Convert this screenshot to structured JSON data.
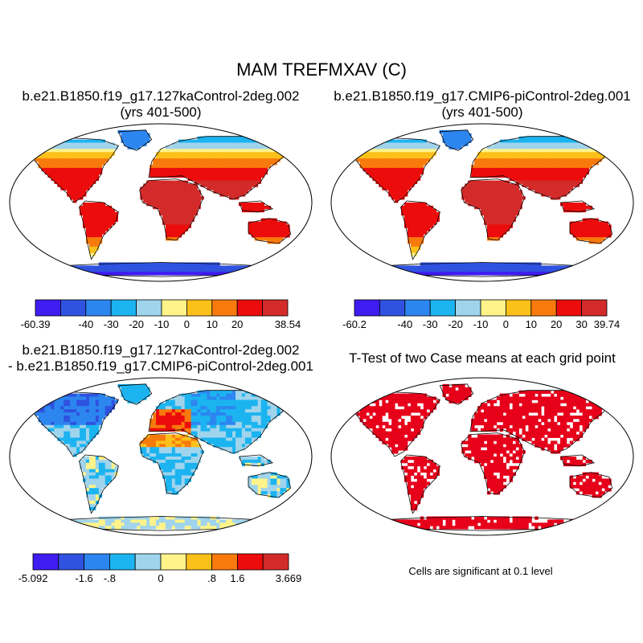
{
  "title": "MAM TREFMXAV (C)",
  "colors": {
    "palette": [
      "#3f1cf0",
      "#2f52e0",
      "#2d86f0",
      "#1cb4f0",
      "#a0d4ec",
      "#fff38a",
      "#fcc01a",
      "#f97a0c",
      "#ec0c0c",
      "#d32a2a"
    ],
    "ocean": "#ffffff",
    "coast": "#000000",
    "significant": "#e6001a"
  },
  "panels": {
    "case1": {
      "title_line1": "b.e21.B1850.f19_g17.127kaControl-2deg.002",
      "title_line2": "(yrs 401-500)",
      "colorbar_labels": [
        "-60.39",
        "-40",
        "-30",
        "-20",
        "-10",
        "0",
        "10",
        "20",
        "38.54"
      ]
    },
    "case2": {
      "title_line1": "b.e21.B1850.f19_g17.CMIP6-piControl-2deg.001",
      "title_line2": "(yrs 401-500)",
      "colorbar_labels": [
        "-60.2",
        "-40",
        "-30",
        "-20",
        "-10",
        "0",
        "10",
        "20",
        "30",
        "39.74"
      ]
    },
    "diff": {
      "title_line1": "b.e21.B1850.f19_g17.127kaControl-2deg.002",
      "title_line2": "- b.e21.B1850.f19_g17.CMIP6-piControl-2deg.001",
      "colorbar_labels": [
        "-5.092",
        "-1.6",
        "-.8",
        "0",
        ".8",
        "1.6",
        "3.669"
      ]
    },
    "ttest": {
      "title_line1": "T-Test of two Case means at each grid point",
      "note": "Cells are significant at 0.1 level"
    }
  },
  "chart_data": [
    {
      "type": "heatmap",
      "title": "b.e21.B1850.f19_g17.127kaControl-2deg.002 (yrs 401-500)",
      "variable": "TREFMXAV",
      "units": "C",
      "season": "MAM",
      "value_range": [
        -60.39,
        38.54
      ],
      "colorbar_ticks": [
        -60.39,
        -40,
        -30,
        -20,
        -10,
        0,
        10,
        20,
        38.54
      ],
      "region_values": {
        "tropics": 32,
        "midlatitudes": 15,
        "high_latitudes": -15,
        "antarctica": -45,
        "greenland": -30
      }
    },
    {
      "type": "heatmap",
      "title": "b.e21.B1850.f19_g17.CMIP6-piControl-2deg.001 (yrs 401-500)",
      "variable": "TREFMXAV",
      "units": "C",
      "season": "MAM",
      "value_range": [
        -60.2,
        39.74
      ],
      "colorbar_ticks": [
        -60.2,
        -40,
        -30,
        -20,
        -10,
        0,
        10,
        20,
        30,
        39.74
      ],
      "region_values": {
        "tropics": 32,
        "midlatitudes": 15,
        "high_latitudes": -12,
        "antarctica": -45,
        "greenland": -30
      }
    },
    {
      "type": "heatmap",
      "title": "127kaControl - CMIP6-piControl difference",
      "variable": "TREFMXAV",
      "units": "C",
      "value_range": [
        -5.092,
        3.669
      ],
      "colorbar_ticks": [
        -5.092,
        -1.6,
        -0.8,
        0,
        0.8,
        1.6,
        3.669
      ],
      "region_values": {
        "north_america": -1.6,
        "sahara_mediterranean": 1.6,
        "central_asia": -1.2,
        "tropics": -0.6,
        "antarctica_coast": 0.3
      }
    },
    {
      "type": "heatmap",
      "title": "T-Test of two Case means at each grid point",
      "significance_level": 0.1,
      "note": "Cells are significant at 0.1 level"
    }
  ]
}
